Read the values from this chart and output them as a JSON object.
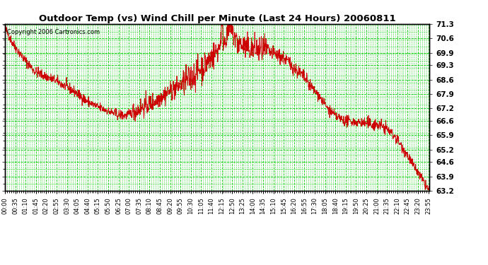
{
  "title": "Outdoor Temp (vs) Wind Chill per Minute (Last 24 Hours) 20060811",
  "copyright": "Copyright 2006 Cartronics.com",
  "line_color": "#cc0000",
  "bg_color": "#ffffff",
  "grid_color": "#00cc00",
  "axis_label_color": "#000000",
  "ylim": [
    63.2,
    71.3
  ],
  "yticks": [
    63.2,
    63.9,
    64.6,
    65.2,
    65.9,
    66.6,
    67.2,
    67.9,
    68.6,
    69.3,
    69.9,
    70.6,
    71.3
  ],
  "xtick_labels": [
    "00:00",
    "00:35",
    "01:10",
    "01:45",
    "02:20",
    "02:55",
    "03:30",
    "04:05",
    "04:40",
    "05:15",
    "05:50",
    "06:25",
    "07:00",
    "07:35",
    "08:10",
    "08:45",
    "09:20",
    "09:55",
    "10:30",
    "11:05",
    "11:40",
    "12:15",
    "12:50",
    "13:25",
    "14:00",
    "14:35",
    "15:10",
    "15:45",
    "16:20",
    "16:55",
    "17:30",
    "18:05",
    "18:40",
    "19:15",
    "19:50",
    "20:25",
    "21:00",
    "21:35",
    "22:10",
    "22:45",
    "23:20",
    "23:55"
  ],
  "figsize": [
    6.9,
    3.75
  ],
  "dpi": 100
}
